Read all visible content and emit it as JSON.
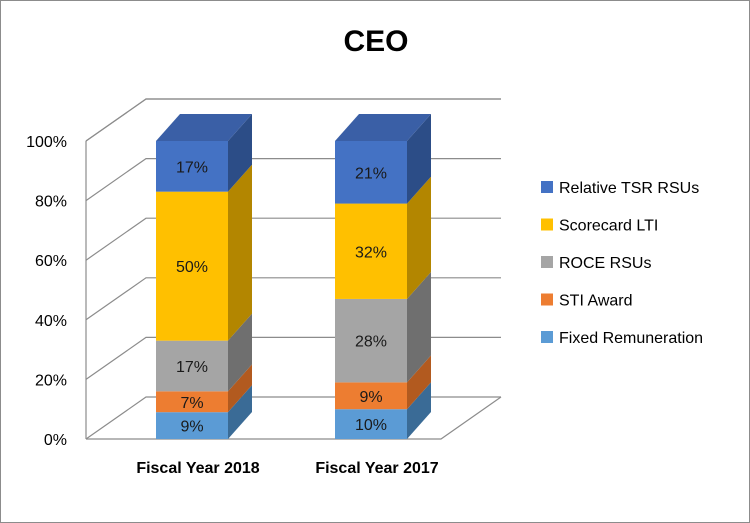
{
  "chart_data": {
    "type": "bar",
    "stacked": true,
    "three_d": true,
    "title": "CEO",
    "categories": [
      "Fiscal Year 2018",
      "Fiscal Year 2017"
    ],
    "ylim": [
      0,
      100
    ],
    "yticks": [
      "0%",
      "20%",
      "40%",
      "60%",
      "80%",
      "100%"
    ],
    "ytick_values": [
      0,
      20,
      40,
      60,
      80,
      100
    ],
    "grid": true,
    "legend_position": "right",
    "series": [
      {
        "name": "Fixed Remuneration",
        "values": [
          9,
          10
        ],
        "labels": [
          "9%",
          "10%"
        ],
        "color": "#5b9bd5",
        "side_color": "#3a6b96",
        "top_color": "#4a80b3"
      },
      {
        "name": "STI Award",
        "values": [
          7,
          9
        ],
        "labels": [
          "7%",
          "9%"
        ],
        "color": "#ed7d31",
        "side_color": "#b25a1f",
        "top_color": "#cf6a27"
      },
      {
        "name": "ROCE RSUs",
        "values": [
          17,
          28
        ],
        "labels": [
          "17%",
          "28%"
        ],
        "color": "#a5a5a5",
        "side_color": "#6f6f6f",
        "top_color": "#8a8a8a"
      },
      {
        "name": "Scorecard LTI",
        "values": [
          50,
          32
        ],
        "labels": [
          "50%",
          "32%"
        ],
        "color": "#ffc000",
        "side_color": "#b38600",
        "top_color": "#d9a300"
      },
      {
        "name": "Relative TSR RSUs",
        "values": [
          17,
          21
        ],
        "labels": [
          "17%",
          "21%"
        ],
        "color": "#4472c4",
        "side_color": "#2c4d87",
        "top_color": "#3a5fa6"
      }
    ]
  }
}
